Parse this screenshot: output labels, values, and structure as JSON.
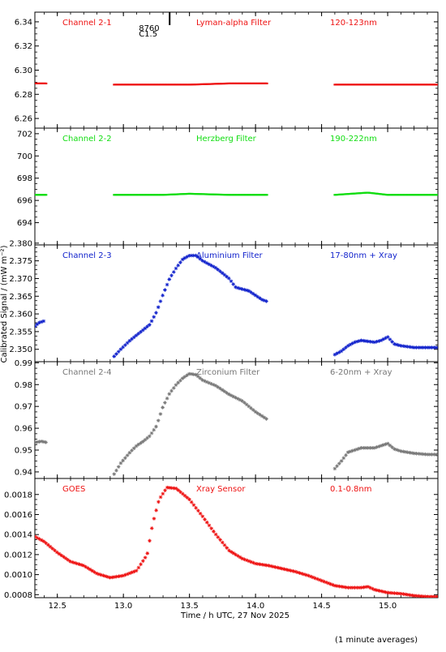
{
  "figure": {
    "xlabel": "Time / h UTC, 27 Nov 2025",
    "ylabel": "Calibrated Signal / (mW m⁻²)",
    "footnote": "(1 minute averages)",
    "xlim": [
      12.33,
      15.38
    ],
    "xticks": [
      "12.5",
      "13.0",
      "13.5",
      "14.0",
      "14.5",
      "15.0"
    ],
    "xtick_values": [
      12.5,
      13.0,
      13.5,
      14.0,
      14.5,
      15.0
    ],
    "flare_marker": {
      "x": 13.35,
      "class_label": "C1.5",
      "id_label": "8760"
    }
  },
  "chart_data": [
    {
      "type": "scatter",
      "name": "Channel 2-1",
      "labels": [
        "Channel 2-1",
        "Lyman-alpha Filter",
        "120-123nm"
      ],
      "color": "#ee1111",
      "ylim": [
        6.252,
        6.348
      ],
      "yticks": [
        "6.26",
        "6.28",
        "6.30",
        "6.32",
        "6.34"
      ],
      "ytick_values": [
        6.26,
        6.28,
        6.3,
        6.32,
        6.34
      ],
      "points": [
        [
          12.33,
          6.289
        ],
        [
          12.4,
          6.289
        ],
        [
          12.93,
          6.288
        ],
        [
          13.2,
          6.288
        ],
        [
          13.5,
          6.288
        ],
        [
          13.8,
          6.289
        ],
        [
          14.09,
          6.289
        ],
        [
          14.6,
          6.288
        ],
        [
          15.0,
          6.288
        ],
        [
          15.38,
          6.288
        ]
      ],
      "segments": [
        [
          12.33,
          12.42
        ],
        [
          12.93,
          14.09
        ],
        [
          14.6,
          15.38
        ]
      ],
      "marker": "dash"
    },
    {
      "type": "scatter",
      "name": "Channel 2-2",
      "labels": [
        "Channel 2-2",
        "Herzberg Filter",
        "190-222nm"
      ],
      "color": "#11dd11",
      "ylim": [
        692.0,
        702.5
      ],
      "yticks": [
        "694",
        "696",
        "698",
        "700",
        "702"
      ],
      "ytick_values": [
        694,
        696,
        698,
        700,
        702
      ],
      "points": [
        [
          12.33,
          696.5
        ],
        [
          12.42,
          696.5
        ],
        [
          12.93,
          696.5
        ],
        [
          13.3,
          696.5
        ],
        [
          13.5,
          696.6
        ],
        [
          13.8,
          696.5
        ],
        [
          14.09,
          696.5
        ],
        [
          14.6,
          696.5
        ],
        [
          14.85,
          696.7
        ],
        [
          15.0,
          696.5
        ],
        [
          15.38,
          696.5
        ]
      ],
      "segments": [
        [
          12.33,
          12.42
        ],
        [
          12.93,
          14.09
        ],
        [
          14.6,
          15.38
        ]
      ],
      "marker": "dash"
    },
    {
      "type": "scatter",
      "name": "Channel 2-3",
      "labels": [
        "Channel 2-3",
        "Aluminium Filter",
        "17-80nm + Xray"
      ],
      "color": "#1122cc",
      "ylim": [
        2.3465,
        2.3795
      ],
      "yticks": [
        "2.350",
        "2.355",
        "2.360",
        "2.365",
        "2.370",
        "2.375",
        "2.380"
      ],
      "ytick_values": [
        2.35,
        2.355,
        2.36,
        2.365,
        2.37,
        2.375,
        2.38
      ],
      "points": [
        [
          12.33,
          2.3565
        ],
        [
          12.36,
          2.3575
        ],
        [
          12.4,
          2.358
        ],
        [
          12.93,
          2.348
        ],
        [
          12.98,
          2.35
        ],
        [
          13.05,
          2.3525
        ],
        [
          13.1,
          2.354
        ],
        [
          13.15,
          2.3555
        ],
        [
          13.2,
          2.357
        ],
        [
          13.25,
          2.3605
        ],
        [
          13.3,
          2.3655
        ],
        [
          13.35,
          2.37
        ],
        [
          13.4,
          2.373
        ],
        [
          13.45,
          2.3755
        ],
        [
          13.5,
          2.3765
        ],
        [
          13.55,
          2.3765
        ],
        [
          13.6,
          2.375
        ],
        [
          13.7,
          2.373
        ],
        [
          13.8,
          2.37
        ],
        [
          13.85,
          2.3675
        ],
        [
          13.95,
          2.3665
        ],
        [
          14.05,
          2.364
        ],
        [
          14.09,
          2.3635
        ],
        [
          14.6,
          2.3485
        ],
        [
          14.65,
          2.3495
        ],
        [
          14.7,
          2.351
        ],
        [
          14.75,
          2.352
        ],
        [
          14.8,
          2.3525
        ],
        [
          14.9,
          2.352
        ],
        [
          14.95,
          2.3525
        ],
        [
          15.0,
          2.3535
        ],
        [
          15.05,
          2.3515
        ],
        [
          15.1,
          2.351
        ],
        [
          15.2,
          2.3505
        ],
        [
          15.3,
          2.3505
        ],
        [
          15.38,
          2.3505
        ]
      ]
    },
    {
      "type": "scatter",
      "name": "Channel 2-4",
      "labels": [
        "Channel 2-4",
        "Zirconium Filter",
        "6-20nm + Xray"
      ],
      "color": "#777777",
      "ylim": [
        0.937,
        0.9905
      ],
      "yticks": [
        "0.94",
        "0.95",
        "0.96",
        "0.97",
        "0.98",
        "0.99"
      ],
      "ytick_values": [
        0.94,
        0.95,
        0.96,
        0.97,
        0.98,
        0.99
      ],
      "points": [
        [
          12.33,
          0.9535
        ],
        [
          12.38,
          0.954
        ],
        [
          12.42,
          0.9535
        ],
        [
          12.93,
          0.939
        ],
        [
          12.98,
          0.944
        ],
        [
          13.05,
          0.949
        ],
        [
          13.1,
          0.952
        ],
        [
          13.15,
          0.954
        ],
        [
          13.2,
          0.9565
        ],
        [
          13.25,
          0.961
        ],
        [
          13.3,
          0.97
        ],
        [
          13.35,
          0.976
        ],
        [
          13.4,
          0.98
        ],
        [
          13.45,
          0.983
        ],
        [
          13.5,
          0.985
        ],
        [
          13.55,
          0.9845
        ],
        [
          13.6,
          0.982
        ],
        [
          13.7,
          0.9795
        ],
        [
          13.8,
          0.9755
        ],
        [
          13.9,
          0.9725
        ],
        [
          14.0,
          0.9675
        ],
        [
          14.09,
          0.964
        ],
        [
          14.6,
          0.9415
        ],
        [
          14.65,
          0.945
        ],
        [
          14.7,
          0.949
        ],
        [
          14.8,
          0.951
        ],
        [
          14.9,
          0.951
        ],
        [
          15.0,
          0.953
        ],
        [
          15.05,
          0.9505
        ],
        [
          15.1,
          0.9495
        ],
        [
          15.2,
          0.9485
        ],
        [
          15.3,
          0.948
        ],
        [
          15.38,
          0.948
        ]
      ]
    },
    {
      "type": "scatter",
      "name": "GOES",
      "labels": [
        "GOES",
        "Xray Sensor",
        "0.1-0.8nm"
      ],
      "color": "#ee1111",
      "ylim": [
        0.00077,
        0.00196
      ],
      "yticks": [
        "0.0008",
        "0.0010",
        "0.0012",
        "0.0014",
        "0.0016",
        "0.0018"
      ],
      "ytick_values": [
        0.0008,
        0.001,
        0.0012,
        0.0014,
        0.0016,
        0.0018
      ],
      "points": [
        [
          12.33,
          0.00138
        ],
        [
          12.4,
          0.00133
        ],
        [
          12.5,
          0.00122
        ],
        [
          12.6,
          0.00113
        ],
        [
          12.7,
          0.00109
        ],
        [
          12.8,
          0.00101
        ],
        [
          12.9,
          0.00097
        ],
        [
          13.0,
          0.00099
        ],
        [
          13.1,
          0.00104
        ],
        [
          13.18,
          0.0012
        ],
        [
          13.22,
          0.0015
        ],
        [
          13.27,
          0.00175
        ],
        [
          13.33,
          0.00187
        ],
        [
          13.4,
          0.00186
        ],
        [
          13.5,
          0.00175
        ],
        [
          13.6,
          0.00158
        ],
        [
          13.7,
          0.0014
        ],
        [
          13.8,
          0.00124
        ],
        [
          13.9,
          0.00116
        ],
        [
          14.0,
          0.00111
        ],
        [
          14.1,
          0.00109
        ],
        [
          14.2,
          0.00106
        ],
        [
          14.3,
          0.00103
        ],
        [
          14.4,
          0.00099
        ],
        [
          14.5,
          0.00094
        ],
        [
          14.6,
          0.00089
        ],
        [
          14.7,
          0.00087
        ],
        [
          14.8,
          0.00087
        ],
        [
          14.85,
          0.00088
        ],
        [
          14.9,
          0.00085
        ],
        [
          15.0,
          0.00082
        ],
        [
          15.1,
          0.00081
        ],
        [
          15.2,
          0.00079
        ],
        [
          15.3,
          0.00078
        ],
        [
          15.38,
          0.00078
        ]
      ]
    }
  ]
}
